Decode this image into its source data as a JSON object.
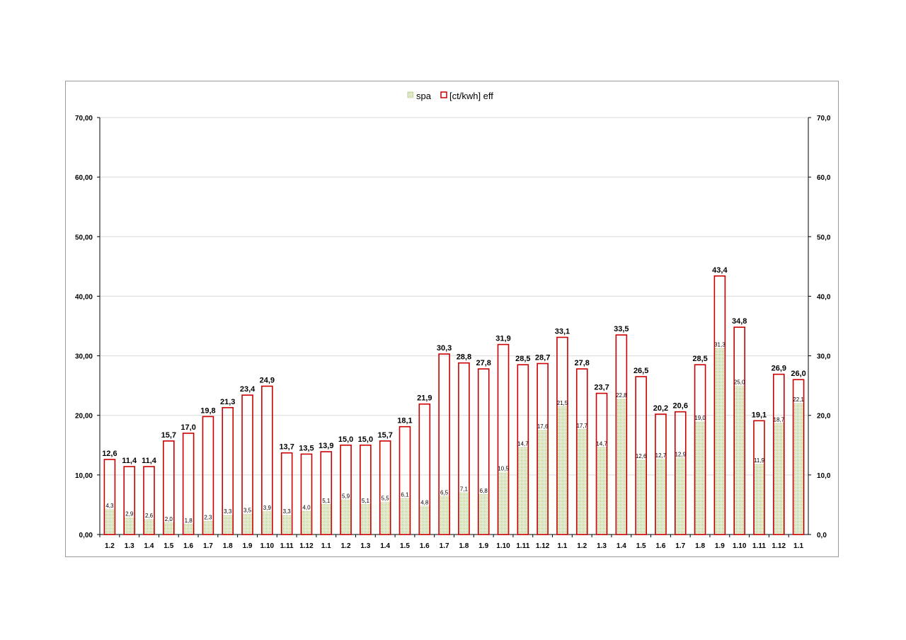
{
  "chart_data": {
    "type": "bar",
    "title": "",
    "xlabel": "",
    "ylabel": "",
    "ylim": [
      0,
      70
    ],
    "y_left_ticks": [
      "0,00",
      "10,00",
      "20,00",
      "30,00",
      "40,00",
      "50,00",
      "60,00",
      "70,00"
    ],
    "y_right_ticks": [
      "0,0",
      "10,0",
      "20,0",
      "30,0",
      "40,0",
      "50,0",
      "60,0",
      "70,0"
    ],
    "legend_position": "top-center",
    "grid": true,
    "categories": [
      "1.2",
      "1.3",
      "1.4",
      "1.5",
      "1.6",
      "1.7",
      "1.8",
      "1.9",
      "1.10",
      "1.11",
      "1.12",
      "1.1",
      "1.2",
      "1.3",
      "1.4",
      "1.5",
      "1.6",
      "1.7",
      "1.8",
      "1.9",
      "1.10",
      "1.11",
      "1.12",
      "1.1",
      "1.2",
      "1.3",
      "1.4",
      "1.5",
      "1.6",
      "1.7",
      "1.8",
      "1.9",
      "1.10",
      "1.11",
      "1.12",
      "1.1"
    ],
    "series": [
      {
        "name": "spa",
        "color": "#9bbb59",
        "values": [
          4.3,
          2.9,
          2.6,
          2.0,
          1.8,
          2.3,
          3.3,
          3.5,
          3.9,
          3.3,
          4.0,
          5.1,
          5.9,
          5.1,
          5.5,
          6.1,
          4.8,
          6.5,
          7.1,
          6.8,
          10.5,
          14.7,
          17.6,
          21.5,
          17.7,
          14.7,
          22.8,
          12.6,
          12.7,
          12.9,
          19.0,
          31.3,
          25.0,
          11.9,
          18.7,
          22.1
        ],
        "labels": [
          "4,3",
          "2,9",
          "2,6",
          "2,0",
          "1,8",
          "2,3",
          "3,3",
          "3,5",
          "3,9",
          "3,3",
          "4,0",
          "5,1",
          "5,9",
          "5,1",
          "5,5",
          "6,1",
          "4,8",
          "6,5",
          "7,1",
          "6,8",
          "10,5",
          "14,7",
          "17,6",
          "21,5",
          "17,7",
          "14,7",
          "22,8",
          "12,6",
          "12,7",
          "12,9",
          "19,0",
          "31,3",
          "25,0",
          "11,9",
          "18,7",
          "22,1"
        ]
      },
      {
        "name": "[ct/kwh] eff",
        "color": "#cc0000",
        "values": [
          12.6,
          11.4,
          11.4,
          15.7,
          17.0,
          19.8,
          21.3,
          23.4,
          24.9,
          13.7,
          13.5,
          13.9,
          15.0,
          15.0,
          15.7,
          18.1,
          21.9,
          30.3,
          28.8,
          27.8,
          31.9,
          28.5,
          28.7,
          33.1,
          27.8,
          23.7,
          33.5,
          26.5,
          20.2,
          20.6,
          28.5,
          43.4,
          34.8,
          19.1,
          26.9,
          26.0
        ],
        "labels": [
          "12,6",
          "11,4",
          "11,4",
          "15,7",
          "17,0",
          "19,8",
          "21,3",
          "23,4",
          "24,9",
          "13,7",
          "13,5",
          "13,9",
          "15,0",
          "15,0",
          "15,7",
          "18,1",
          "21,9",
          "30,3",
          "28,8",
          "27,8",
          "31,9",
          "28,5",
          "28,7",
          "33,1",
          "27,8",
          "23,7",
          "33,5",
          "26,5",
          "20,2",
          "20,6",
          "28,5",
          "43,4",
          "34,8",
          "19,1",
          "26,9",
          "26,0"
        ]
      }
    ]
  }
}
